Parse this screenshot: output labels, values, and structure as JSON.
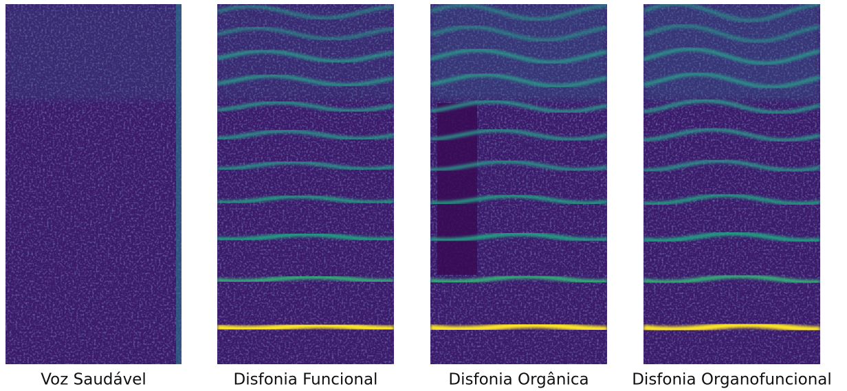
{
  "panels": [
    {
      "caption": "Voz Saudável"
    },
    {
      "caption": "Disfonia Funcional"
    },
    {
      "caption": "Disfonia Orgânica"
    },
    {
      "caption": "Disfonia Organofuncional"
    }
  ]
}
